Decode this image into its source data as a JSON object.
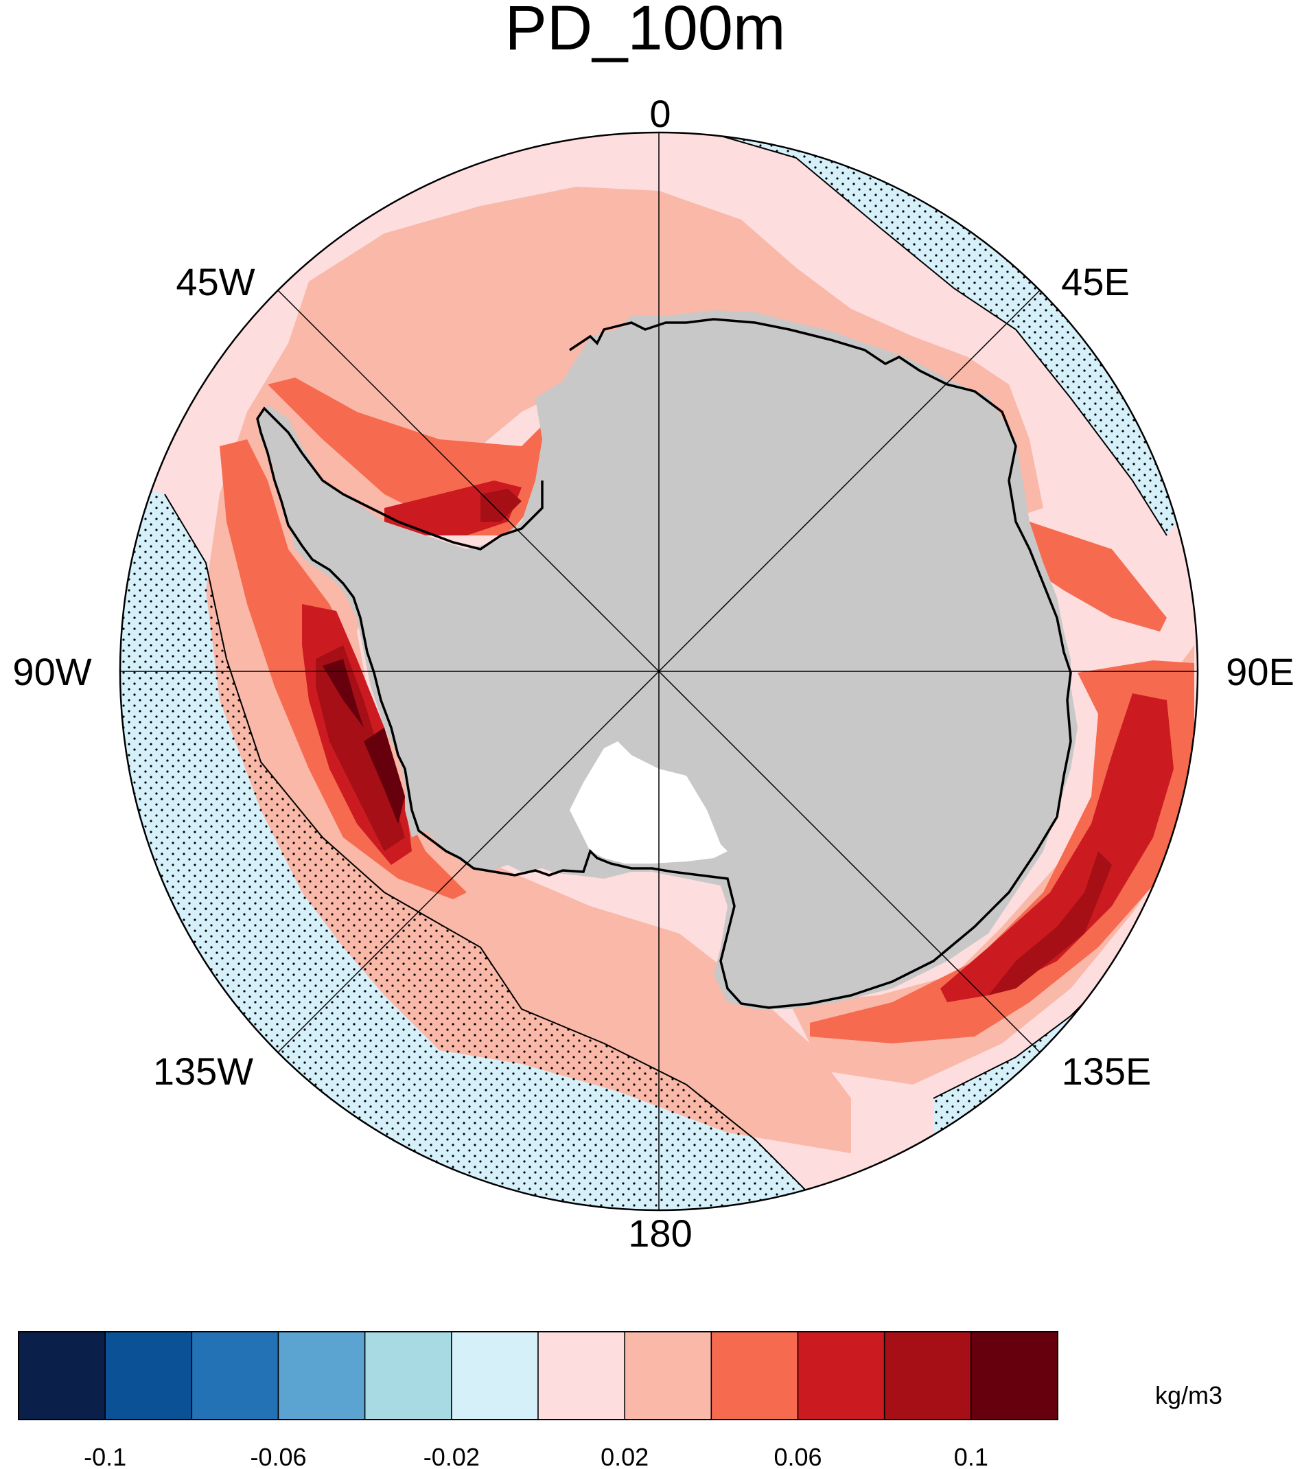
{
  "title": "PD_100m",
  "longitude_labels": {
    "lon_0": "0",
    "lon_45e": "45E",
    "lon_90e": "90E",
    "lon_135e": "135E",
    "lon_180": "180",
    "lon_135w": "135W",
    "lon_90w": "90W",
    "lon_45w": "45W"
  },
  "colorbar": {
    "unit": "kg/m3",
    "colors": [
      "#0b1f4b",
      "#0a5196",
      "#2372b6",
      "#5ba3d0",
      "#a8dae3",
      "#d6f0fa",
      "#fdddde",
      "#f9b8a8",
      "#f66a4f",
      "#cc1a21",
      "#a50f15",
      "#67000d"
    ],
    "tick_labels": [
      "-0.1",
      "-0.06",
      "-0.02",
      "0.02",
      "0.06",
      "0.1"
    ]
  },
  "colors": {
    "land": "#c8c8c8",
    "ice_shelf": "#ffffff",
    "coastline": "#000000"
  }
}
